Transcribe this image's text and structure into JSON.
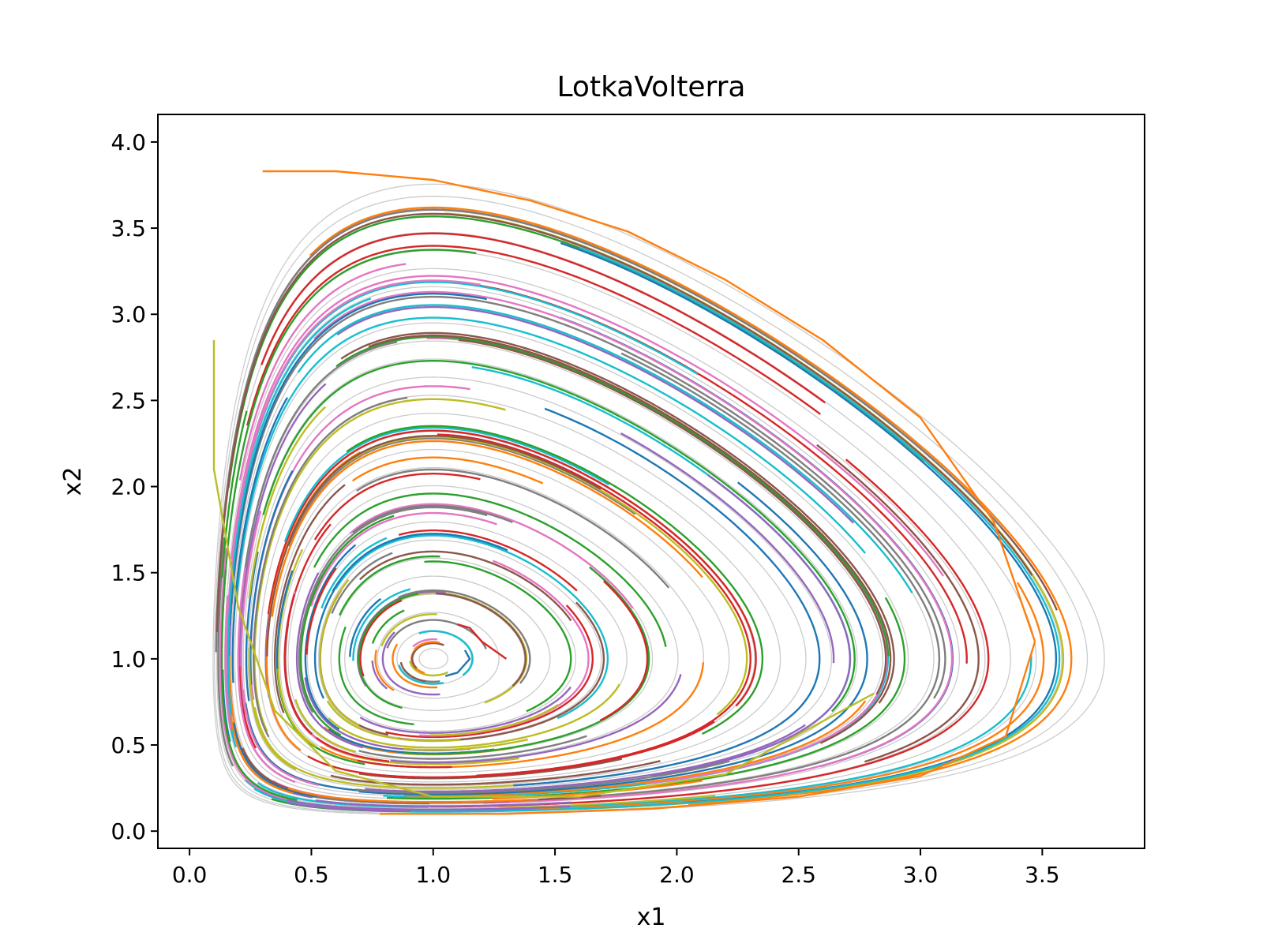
{
  "chart_data": {
    "type": "line",
    "title": "LotkaVolterra",
    "xlabel": "x1",
    "ylabel": "x2",
    "xlim": [
      -0.13,
      3.92
    ],
    "ylim": [
      -0.1,
      4.16
    ],
    "xticks": [
      "0.0",
      "0.5",
      "1.0",
      "1.5",
      "2.0",
      "2.5",
      "3.0",
      "3.5"
    ],
    "yticks": [
      "0.0",
      "0.5",
      "1.0",
      "1.5",
      "2.0",
      "2.5",
      "3.0",
      "3.5",
      "4.0"
    ],
    "grid": false,
    "legend": "none",
    "background_orbit_color": "#cccccc",
    "series_colors": [
      "#1f77b4",
      "#ff7f0e",
      "#2ca02c",
      "#d62728",
      "#9467bd",
      "#8c564b",
      "#e377c2",
      "#7f7f7f",
      "#bcbd22",
      "#17becf"
    ],
    "equilibrium": [
      1.0,
      1.0
    ],
    "series": [
      {
        "color": "#bcbd22",
        "x": [
          2.81,
          2.2,
          1.6,
          1.0,
          0.6,
          0.35,
          0.2,
          0.1,
          0.1
        ],
        "y": [
          0.8,
          0.33,
          0.2,
          0.2,
          0.35,
          0.7,
          1.3,
          2.1,
          2.85
        ]
      },
      {
        "color": "#ff7f0e",
        "x": [
          3.47,
          3.3,
          3.0,
          2.6,
          2.2,
          1.8,
          1.4,
          1.0,
          0.6,
          0.3
        ],
        "y": [
          1.1,
          1.8,
          2.4,
          2.85,
          3.2,
          3.48,
          3.66,
          3.78,
          3.83,
          3.83
        ]
      },
      {
        "color": "#ff7f0e",
        "x": [
          0.78,
          1.3,
          1.9,
          2.5,
          3.0,
          3.35,
          3.47
        ],
        "y": [
          0.1,
          0.1,
          0.13,
          0.2,
          0.32,
          0.55,
          1.1
        ]
      },
      {
        "color": "#d62728",
        "x": [
          1.1,
          1.15,
          1.2,
          1.3
        ],
        "y": [
          1.2,
          1.18,
          1.1,
          1.0
        ]
      },
      {
        "color": "#1f77b4",
        "x": [
          1.05,
          1.1,
          1.15,
          1.13
        ],
        "y": [
          0.9,
          0.92,
          1.0,
          1.05
        ]
      }
    ]
  }
}
